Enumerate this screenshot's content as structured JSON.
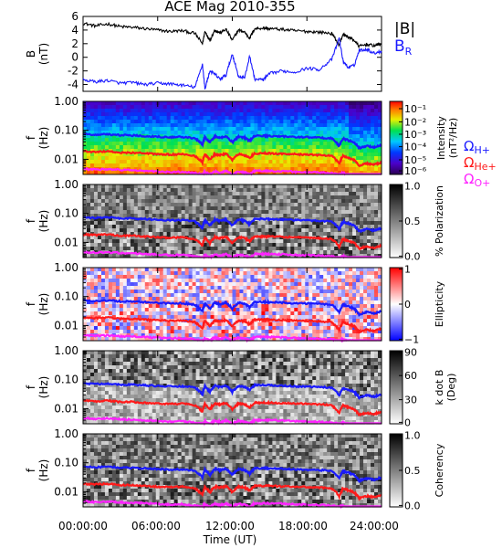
{
  "title": "ACE Mag 2010-355",
  "colors": {
    "total_field": "#000000",
    "radial_field": "#1a1aff",
    "h_cyclotron": "#1a1aff",
    "he_cyclotron": "#ff1a1a",
    "o_cyclotron": "#ff22ff"
  },
  "top_legend": {
    "bmag_label": "|B|",
    "br_base": "B",
    "br_sub": "R"
  },
  "line_legend": [
    {
      "base": "Ω",
      "sub": "H+",
      "color": "#1a1aff"
    },
    {
      "base": "Ω",
      "sub": "He+",
      "color": "#ff1a1a"
    },
    {
      "base": "Ω",
      "sub": "O+",
      "color": "#ff22ff"
    }
  ],
  "freq_ylabel": {
    "line1": "f",
    "line2": "(Hz)"
  },
  "freq_ticks": [
    "1.00",
    "0.10",
    "0.01"
  ],
  "x_axis": {
    "ticks": [
      "00:00:00",
      "06:00:00",
      "12:00:00",
      "18:00:00",
      "24:00:00"
    ],
    "label": "Time (UT)"
  },
  "chart_data": [
    {
      "type": "line",
      "panel": "field",
      "ylabel_line1": "B",
      "ylabel_line2": "(nT)",
      "ylim": [
        -5,
        6
      ],
      "yticks": [
        "6",
        "4",
        "2",
        "0",
        "-2",
        "-4"
      ],
      "xlim_hours": [
        0,
        24
      ],
      "series": [
        {
          "name": "|B|",
          "x": [
            0,
            1,
            2,
            3,
            4,
            5,
            6,
            7,
            8,
            9,
            9.6,
            9.8,
            10.2,
            10.6,
            11.0,
            11.5,
            12.0,
            12.5,
            13.0,
            13.4,
            13.8,
            14.5,
            15,
            16,
            17,
            18,
            19,
            20,
            20.6,
            20.9,
            21.3,
            21.8,
            22.2,
            22.8,
            23.4,
            24
          ],
          "values": [
            5.0,
            4.6,
            4.9,
            4.5,
            4.4,
            4.2,
            4.0,
            3.8,
            3.9,
            3.5,
            2.0,
            3.8,
            2.5,
            4.0,
            3.6,
            4.1,
            2.5,
            4.0,
            3.7,
            2.8,
            4.2,
            4.3,
            4.2,
            4.1,
            3.9,
            3.8,
            3.7,
            3.5,
            1.8,
            3.4,
            3.0,
            2.5,
            1.6,
            1.9,
            1.7,
            2.0
          ]
        },
        {
          "name": "B R",
          "x": [
            0,
            1,
            2,
            3,
            4,
            5,
            6,
            7,
            8,
            9,
            9.6,
            9.8,
            10.2,
            10.6,
            11.0,
            11.5,
            12.0,
            12.5,
            13.0,
            13.4,
            13.8,
            14.5,
            15,
            16,
            17,
            18,
            19,
            20,
            20.6,
            20.9,
            21.3,
            21.8,
            22.2,
            22.8,
            23.4,
            24
          ],
          "values": [
            -3.3,
            -3.6,
            -3.4,
            -3.8,
            -3.7,
            -4.0,
            -3.8,
            -3.9,
            -4.1,
            -4.4,
            -1.0,
            -4.6,
            -2.0,
            -2.5,
            -3.2,
            -2.6,
            0.5,
            -2.8,
            -3.0,
            0.2,
            -3.2,
            -3.3,
            -2.4,
            -2.0,
            -2.2,
            -1.6,
            -1.8,
            -0.3,
            2.8,
            -0.5,
            -1.5,
            -1.2,
            1.0,
            1.2,
            0.6,
            0.9
          ]
        }
      ]
    },
    {
      "type": "heatmap",
      "panel": "power",
      "colorbar": {
        "label_line1": "Intensity",
        "label_line2": "(nT²/Hz)",
        "ticks": [
          "10⁻¹",
          "10⁻²",
          "10⁻³",
          "10⁻⁴",
          "10⁻⁵",
          "10⁻⁶"
        ],
        "scale": "log",
        "palette": "rainbow"
      }
    },
    {
      "type": "heatmap",
      "panel": "polarization",
      "colorbar": {
        "label_line1": "% Polarization",
        "label_line2": "",
        "ticks": [
          "1.0",
          "0.5",
          "0.0"
        ],
        "palette": "gray"
      }
    },
    {
      "type": "heatmap",
      "panel": "ellipticity",
      "colorbar": {
        "label_line1": "Ellipticity",
        "label_line2": "",
        "ticks": [
          "1",
          "0",
          "−1"
        ],
        "palette": "bwr"
      }
    },
    {
      "type": "heatmap",
      "panel": "kdotb",
      "colorbar": {
        "label_line1": "k dot B",
        "label_line2": "(Deg)",
        "ticks": [
          "90",
          "60",
          "30",
          "0"
        ],
        "palette": "gray"
      }
    },
    {
      "type": "heatmap",
      "panel": "coherency",
      "colorbar": {
        "label_line1": "Coherency",
        "label_line2": "",
        "ticks": [
          "1.0",
          "0.5",
          "0.0"
        ],
        "palette": "gray"
      }
    },
    {
      "type": "line",
      "panel": "cyclotron_frequencies",
      "yscale": "log",
      "ylim": [
        0.003,
        1.0
      ],
      "x": [
        0,
        1,
        2,
        3,
        4,
        5,
        6,
        7,
        8,
        9,
        9.6,
        9.8,
        10.2,
        10.6,
        11.0,
        11.5,
        12.0,
        12.5,
        13.0,
        13.4,
        13.8,
        14.5,
        15,
        16,
        17,
        18,
        19,
        20,
        20.6,
        20.9,
        21.3,
        21.8,
        22.2,
        22.8,
        23.4,
        24
      ],
      "series": [
        {
          "name": "ΩH+",
          "values": [
            0.075,
            0.07,
            0.074,
            0.068,
            0.067,
            0.064,
            0.061,
            0.058,
            0.059,
            0.053,
            0.031,
            0.058,
            0.038,
            0.061,
            0.055,
            0.062,
            0.038,
            0.061,
            0.056,
            0.043,
            0.064,
            0.065,
            0.064,
            0.062,
            0.059,
            0.058,
            0.056,
            0.053,
            0.028,
            0.052,
            0.046,
            0.038,
            0.024,
            0.029,
            0.026,
            0.031
          ]
        },
        {
          "name": "ΩHe+",
          "values": [
            0.019,
            0.018,
            0.019,
            0.017,
            0.017,
            0.016,
            0.015,
            0.0145,
            0.015,
            0.013,
            0.0078,
            0.0145,
            0.0095,
            0.015,
            0.014,
            0.0155,
            0.0095,
            0.015,
            0.014,
            0.011,
            0.016,
            0.016,
            0.016,
            0.0155,
            0.015,
            0.0145,
            0.014,
            0.013,
            0.007,
            0.013,
            0.0115,
            0.0095,
            0.006,
            0.0072,
            0.0065,
            0.0078
          ]
        },
        {
          "name": "ΩO+",
          "values": [
            0.0047,
            0.0044,
            0.0046,
            0.0043,
            0.0042,
            0.004,
            0.0038,
            0.0036,
            0.0037,
            0.0033,
            0.003,
            0.0036,
            0.003,
            0.0038,
            0.0034,
            0.0039,
            0.003,
            0.0038,
            0.0035,
            0.003,
            0.004,
            0.004,
            0.004,
            0.0039,
            0.0037,
            0.0036,
            0.0035,
            0.0033,
            0.003,
            0.0033,
            0.003,
            0.003,
            0.003,
            0.003,
            0.003,
            0.003
          ]
        }
      ]
    }
  ]
}
